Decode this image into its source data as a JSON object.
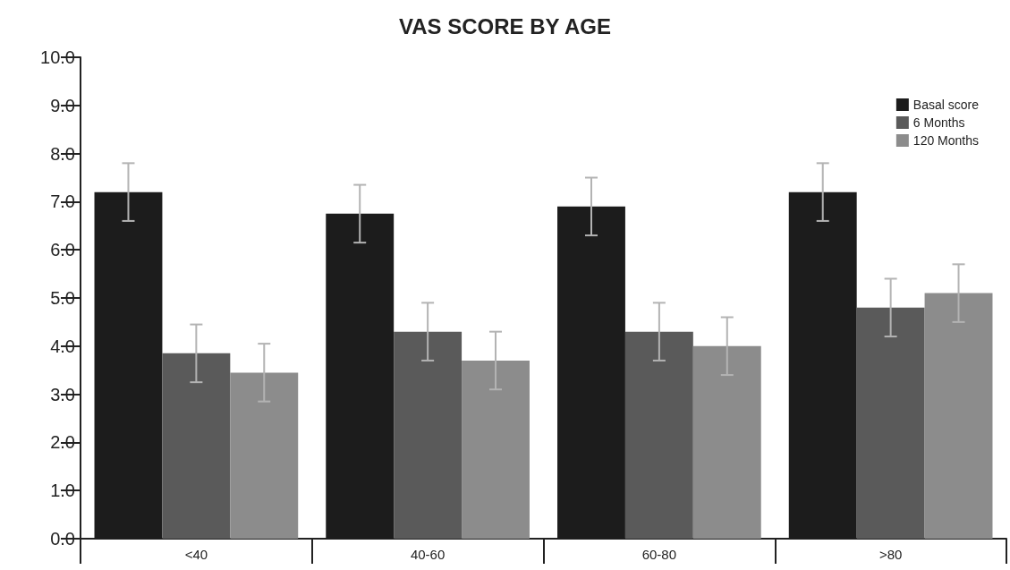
{
  "chart_data": {
    "type": "bar",
    "title": "VAS SCORE BY AGE",
    "categories": [
      "<40",
      "40-60",
      "60-80",
      ">80"
    ],
    "series": [
      {
        "name": "Basal score",
        "color": "#1c1c1c",
        "values": [
          7.2,
          6.75,
          6.9,
          7.2
        ],
        "errors": [
          0.6,
          0.6,
          0.6,
          0.6
        ]
      },
      {
        "name": "6 Months",
        "color": "#5a5a5a",
        "values": [
          3.85,
          4.3,
          4.3,
          4.8
        ],
        "errors": [
          0.6,
          0.6,
          0.6,
          0.6
        ]
      },
      {
        "name": "120 Months",
        "color": "#8c8c8c",
        "values": [
          3.45,
          3.7,
          4.0,
          5.1
        ],
        "errors": [
          0.6,
          0.6,
          0.6,
          0.6
        ]
      }
    ],
    "ylim": [
      0,
      10
    ],
    "yticks": [
      {
        "value": 0,
        "label": "0.0"
      },
      {
        "value": 1,
        "label": "1.0"
      },
      {
        "value": 2,
        "label": "2.0"
      },
      {
        "value": 3,
        "label": "3.0"
      },
      {
        "value": 4,
        "label": "4.0"
      },
      {
        "value": 5,
        "label": "5.0"
      },
      {
        "value": 6,
        "label": "6.0"
      },
      {
        "value": 7,
        "label": "7.0"
      },
      {
        "value": 8,
        "label": "8.0"
      },
      {
        "value": 9,
        "label": "9.0"
      },
      {
        "value": 10,
        "label": "10.0"
      }
    ],
    "grid": false,
    "legend": "top right"
  }
}
